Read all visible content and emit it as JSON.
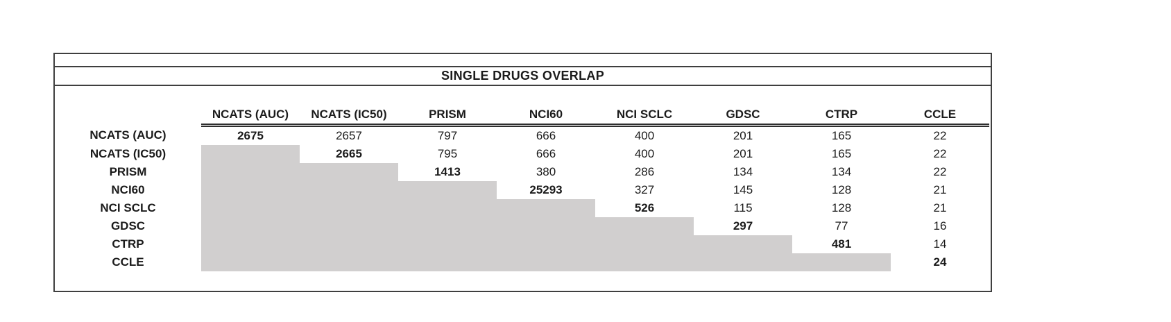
{
  "table": {
    "title": "SINGLE DRUGS OVERLAP",
    "columns": [
      "NCATS (AUC)",
      "NCATS (IC50)",
      "PRISM",
      "NCI60",
      "NCI SCLC",
      "GDSC",
      "CTRP",
      "CCLE"
    ],
    "rows": [
      {
        "label": "NCATS (AUC)",
        "cells": [
          "2675",
          "2657",
          "797",
          "666",
          "400",
          "201",
          "165",
          "22"
        ]
      },
      {
        "label": "NCATS (IC50)",
        "cells": [
          null,
          "2665",
          "795",
          "666",
          "400",
          "201",
          "165",
          "22"
        ]
      },
      {
        "label": "PRISM",
        "cells": [
          null,
          null,
          "1413",
          "380",
          "286",
          "134",
          "134",
          "22"
        ]
      },
      {
        "label": "NCI60",
        "cells": [
          null,
          null,
          null,
          "25293",
          "327",
          "145",
          "128",
          "21"
        ]
      },
      {
        "label": "NCI SCLC",
        "cells": [
          null,
          null,
          null,
          null,
          "526",
          "115",
          "128",
          "21"
        ]
      },
      {
        "label": "GDSC",
        "cells": [
          null,
          null,
          null,
          null,
          null,
          "297",
          "77",
          "16"
        ]
      },
      {
        "label": "CTRP",
        "cells": [
          null,
          null,
          null,
          null,
          null,
          null,
          "481",
          "14"
        ]
      },
      {
        "label": "CCLE",
        "cells": [
          null,
          null,
          null,
          null,
          null,
          null,
          null,
          "24"
        ]
      }
    ],
    "colors": {
      "shaded_cell": "#d1cfcf",
      "border": "#3f3f3f",
      "text": "#1b1b1b",
      "background": "#ffffff"
    }
  },
  "chart_data": {
    "type": "table",
    "title": "SINGLE DRUGS OVERLAP",
    "columns": [
      "NCATS (AUC)",
      "NCATS (IC50)",
      "PRISM",
      "NCI60",
      "NCI SCLC",
      "GDSC",
      "CTRP",
      "CCLE"
    ],
    "row_labels": [
      "NCATS (AUC)",
      "NCATS (IC50)",
      "PRISM",
      "NCI60",
      "NCI SCLC",
      "GDSC",
      "CTRP",
      "CCLE"
    ],
    "matrix": [
      [
        2675,
        2657,
        797,
        666,
        400,
        201,
        165,
        22
      ],
      [
        null,
        2665,
        795,
        666,
        400,
        201,
        165,
        22
      ],
      [
        null,
        null,
        1413,
        380,
        286,
        134,
        134,
        22
      ],
      [
        null,
        null,
        null,
        25293,
        327,
        145,
        128,
        21
      ],
      [
        null,
        null,
        null,
        null,
        526,
        115,
        128,
        21
      ],
      [
        null,
        null,
        null,
        null,
        null,
        297,
        77,
        16
      ],
      [
        null,
        null,
        null,
        null,
        null,
        null,
        481,
        14
      ],
      [
        null,
        null,
        null,
        null,
        null,
        null,
        null,
        24
      ]
    ],
    "layout_hints": {
      "diagonal_bold": true,
      "lower_triangle_shaded_gray": true,
      "header_double_underline": true
    }
  }
}
